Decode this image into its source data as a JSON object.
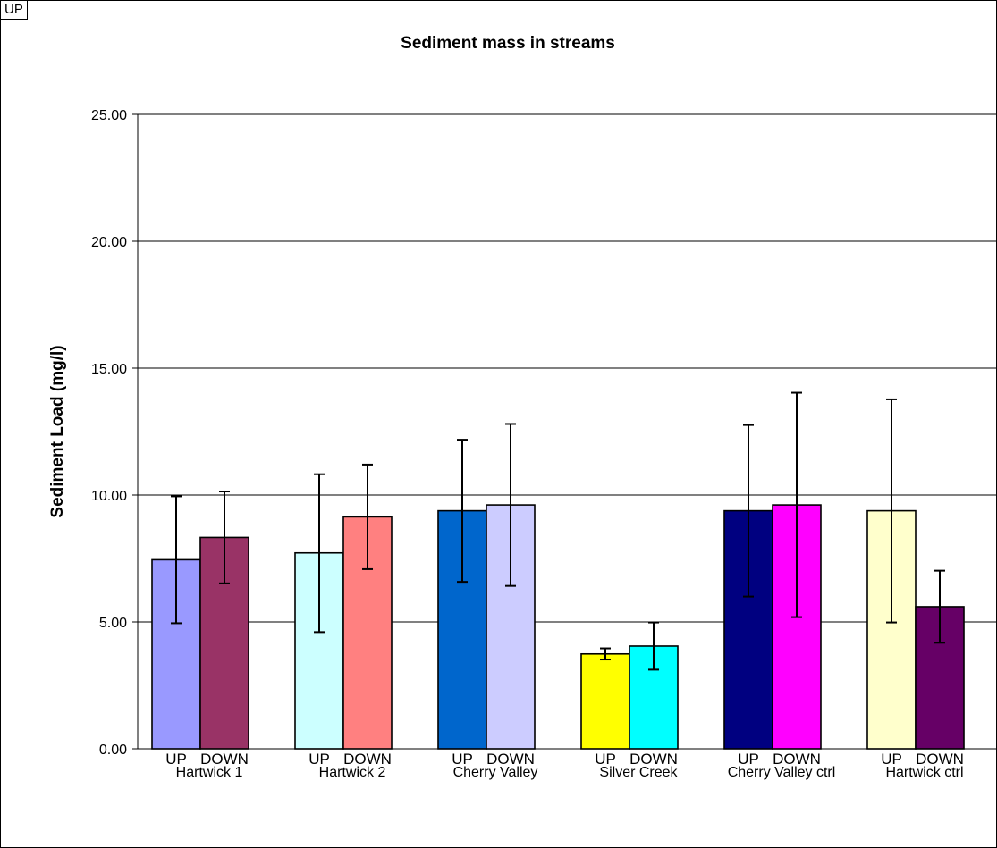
{
  "corner_label": "UP",
  "chart_data": {
    "type": "bar",
    "title": "Sediment mass in streams",
    "xlabel": "",
    "ylabel": "Sediment Load (mg/l)",
    "ylim": [
      0,
      25
    ],
    "yticks": [
      "0.00",
      "5.00",
      "10.00",
      "15.00",
      "20.00",
      "25.00"
    ],
    "grid": true,
    "legend": "none",
    "groups": [
      {
        "name": "Hartwick 1",
        "bars": [
          {
            "label": "UP",
            "value": 7.45,
            "err_low": 4.95,
            "err_high": 9.95,
            "color": "#9999ff"
          },
          {
            "label": "DOWN",
            "value": 8.33,
            "err_low": 6.52,
            "err_high": 10.14,
            "color": "#993366"
          }
        ]
      },
      {
        "name": "Hartwick 2",
        "bars": [
          {
            "label": "UP",
            "value": 7.72,
            "err_low": 4.6,
            "err_high": 10.82,
            "color": "#ccffff"
          },
          {
            "label": "DOWN",
            "value": 9.14,
            "err_low": 7.08,
            "err_high": 11.2,
            "color": "#ff8080"
          }
        ]
      },
      {
        "name": "Cherry Valley",
        "bars": [
          {
            "label": "UP",
            "value": 9.38,
            "err_low": 6.58,
            "err_high": 12.18,
            "color": "#0066cc"
          },
          {
            "label": "DOWN",
            "value": 9.61,
            "err_low": 6.42,
            "err_high": 12.8,
            "color": "#ccccff"
          }
        ]
      },
      {
        "name": "Silver Creek",
        "bars": [
          {
            "label": "UP",
            "value": 3.74,
            "err_low": 3.52,
            "err_high": 3.96,
            "color": "#ffff00"
          },
          {
            "label": "DOWN",
            "value": 4.05,
            "err_low": 3.12,
            "err_high": 4.98,
            "color": "#00ffff"
          }
        ]
      },
      {
        "name": "Cherry Valley ctrl",
        "bars": [
          {
            "label": "UP",
            "value": 9.38,
            "err_low": 6.0,
            "err_high": 12.76,
            "color": "#000080"
          },
          {
            "label": "DOWN",
            "value": 9.61,
            "err_low": 5.19,
            "err_high": 14.03,
            "color": "#ff00ff"
          }
        ]
      },
      {
        "name": "Hartwick ctrl",
        "bars": [
          {
            "label": "UP",
            "value": 9.38,
            "err_low": 4.98,
            "err_high": 13.77,
            "color": "#ffffcc"
          },
          {
            "label": "DOWN",
            "value": 5.6,
            "err_low": 4.18,
            "err_high": 7.02,
            "color": "#660066"
          }
        ]
      }
    ]
  }
}
